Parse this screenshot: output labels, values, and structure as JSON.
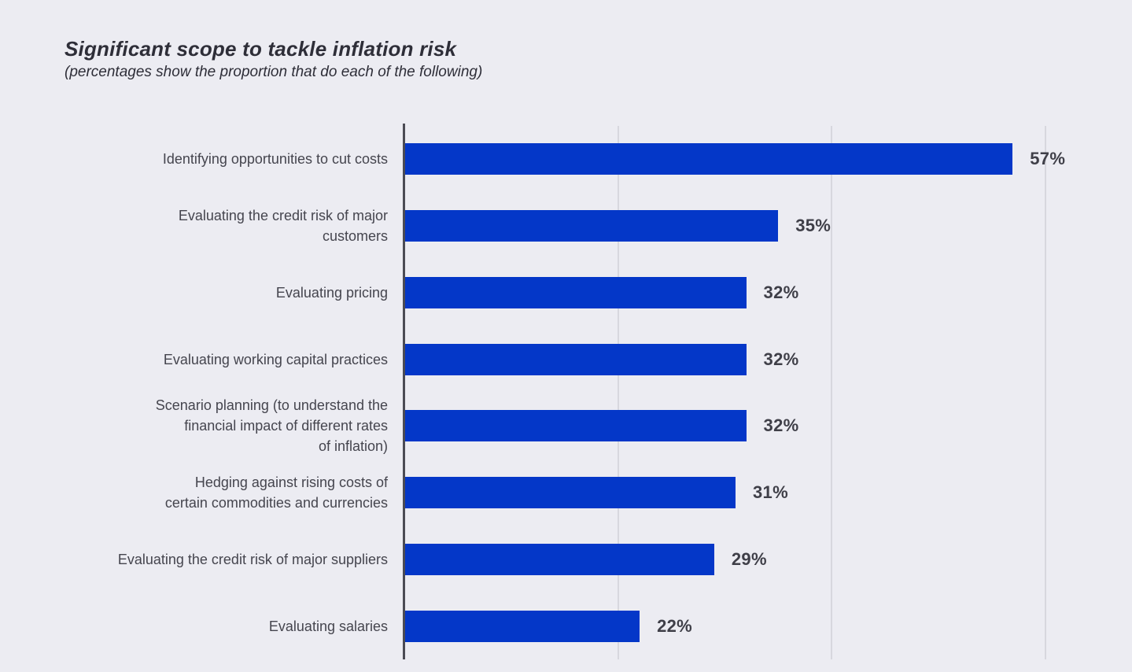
{
  "chart": {
    "title": "Significant scope to tackle inflation risk",
    "subtitle": "(percentages show the proportion that do each of the following)"
  },
  "chart_data": {
    "type": "bar",
    "orientation": "horizontal",
    "title": "Significant scope to tackle inflation risk",
    "subtitle": "(percentages show the proportion that do each of the following)",
    "categories": [
      "Identifying opportunities to cut costs",
      "Evaluating the credit risk of major customers",
      "Evaluating pricing",
      "Evaluating working capital practices",
      "Scenario planning (to understand the financial impact of different rates of inflation)",
      "Hedging against rising costs of certain commodities and currencies",
      "Evaluating the credit risk of major suppliers",
      "Evaluating salaries"
    ],
    "label_lines": [
      "Identifying opportunities to cut costs",
      "Evaluating the credit risk of major\ncustomers",
      "Evaluating pricing",
      "Evaluating working capital practices",
      "Scenario planning (to understand the\nfinancial impact of different rates\nof inflation)",
      "Hedging against rising costs of\ncertain commodities and currencies",
      "Evaluating the credit risk of major suppliers",
      "Evaluating salaries"
    ],
    "values": [
      57,
      35,
      32,
      32,
      32,
      31,
      29,
      22
    ],
    "value_labels": [
      "57%",
      "35%",
      "32%",
      "32%",
      "32%",
      "31%",
      "29%",
      "22%"
    ],
    "xlim": [
      0,
      68.2
    ],
    "gridlines_percent": [
      20,
      40,
      60
    ],
    "grid": "vertical gridlines only, unlabeled axis",
    "legend": "none",
    "bar_color": "#0437c8",
    "gridline_color": "#d7d7de",
    "axis_color": "#4b4b54",
    "background_color": "#ececf2",
    "title_color": "#2e2e38",
    "label_color": "#45454e",
    "value_label_color": "#3f3f48"
  }
}
